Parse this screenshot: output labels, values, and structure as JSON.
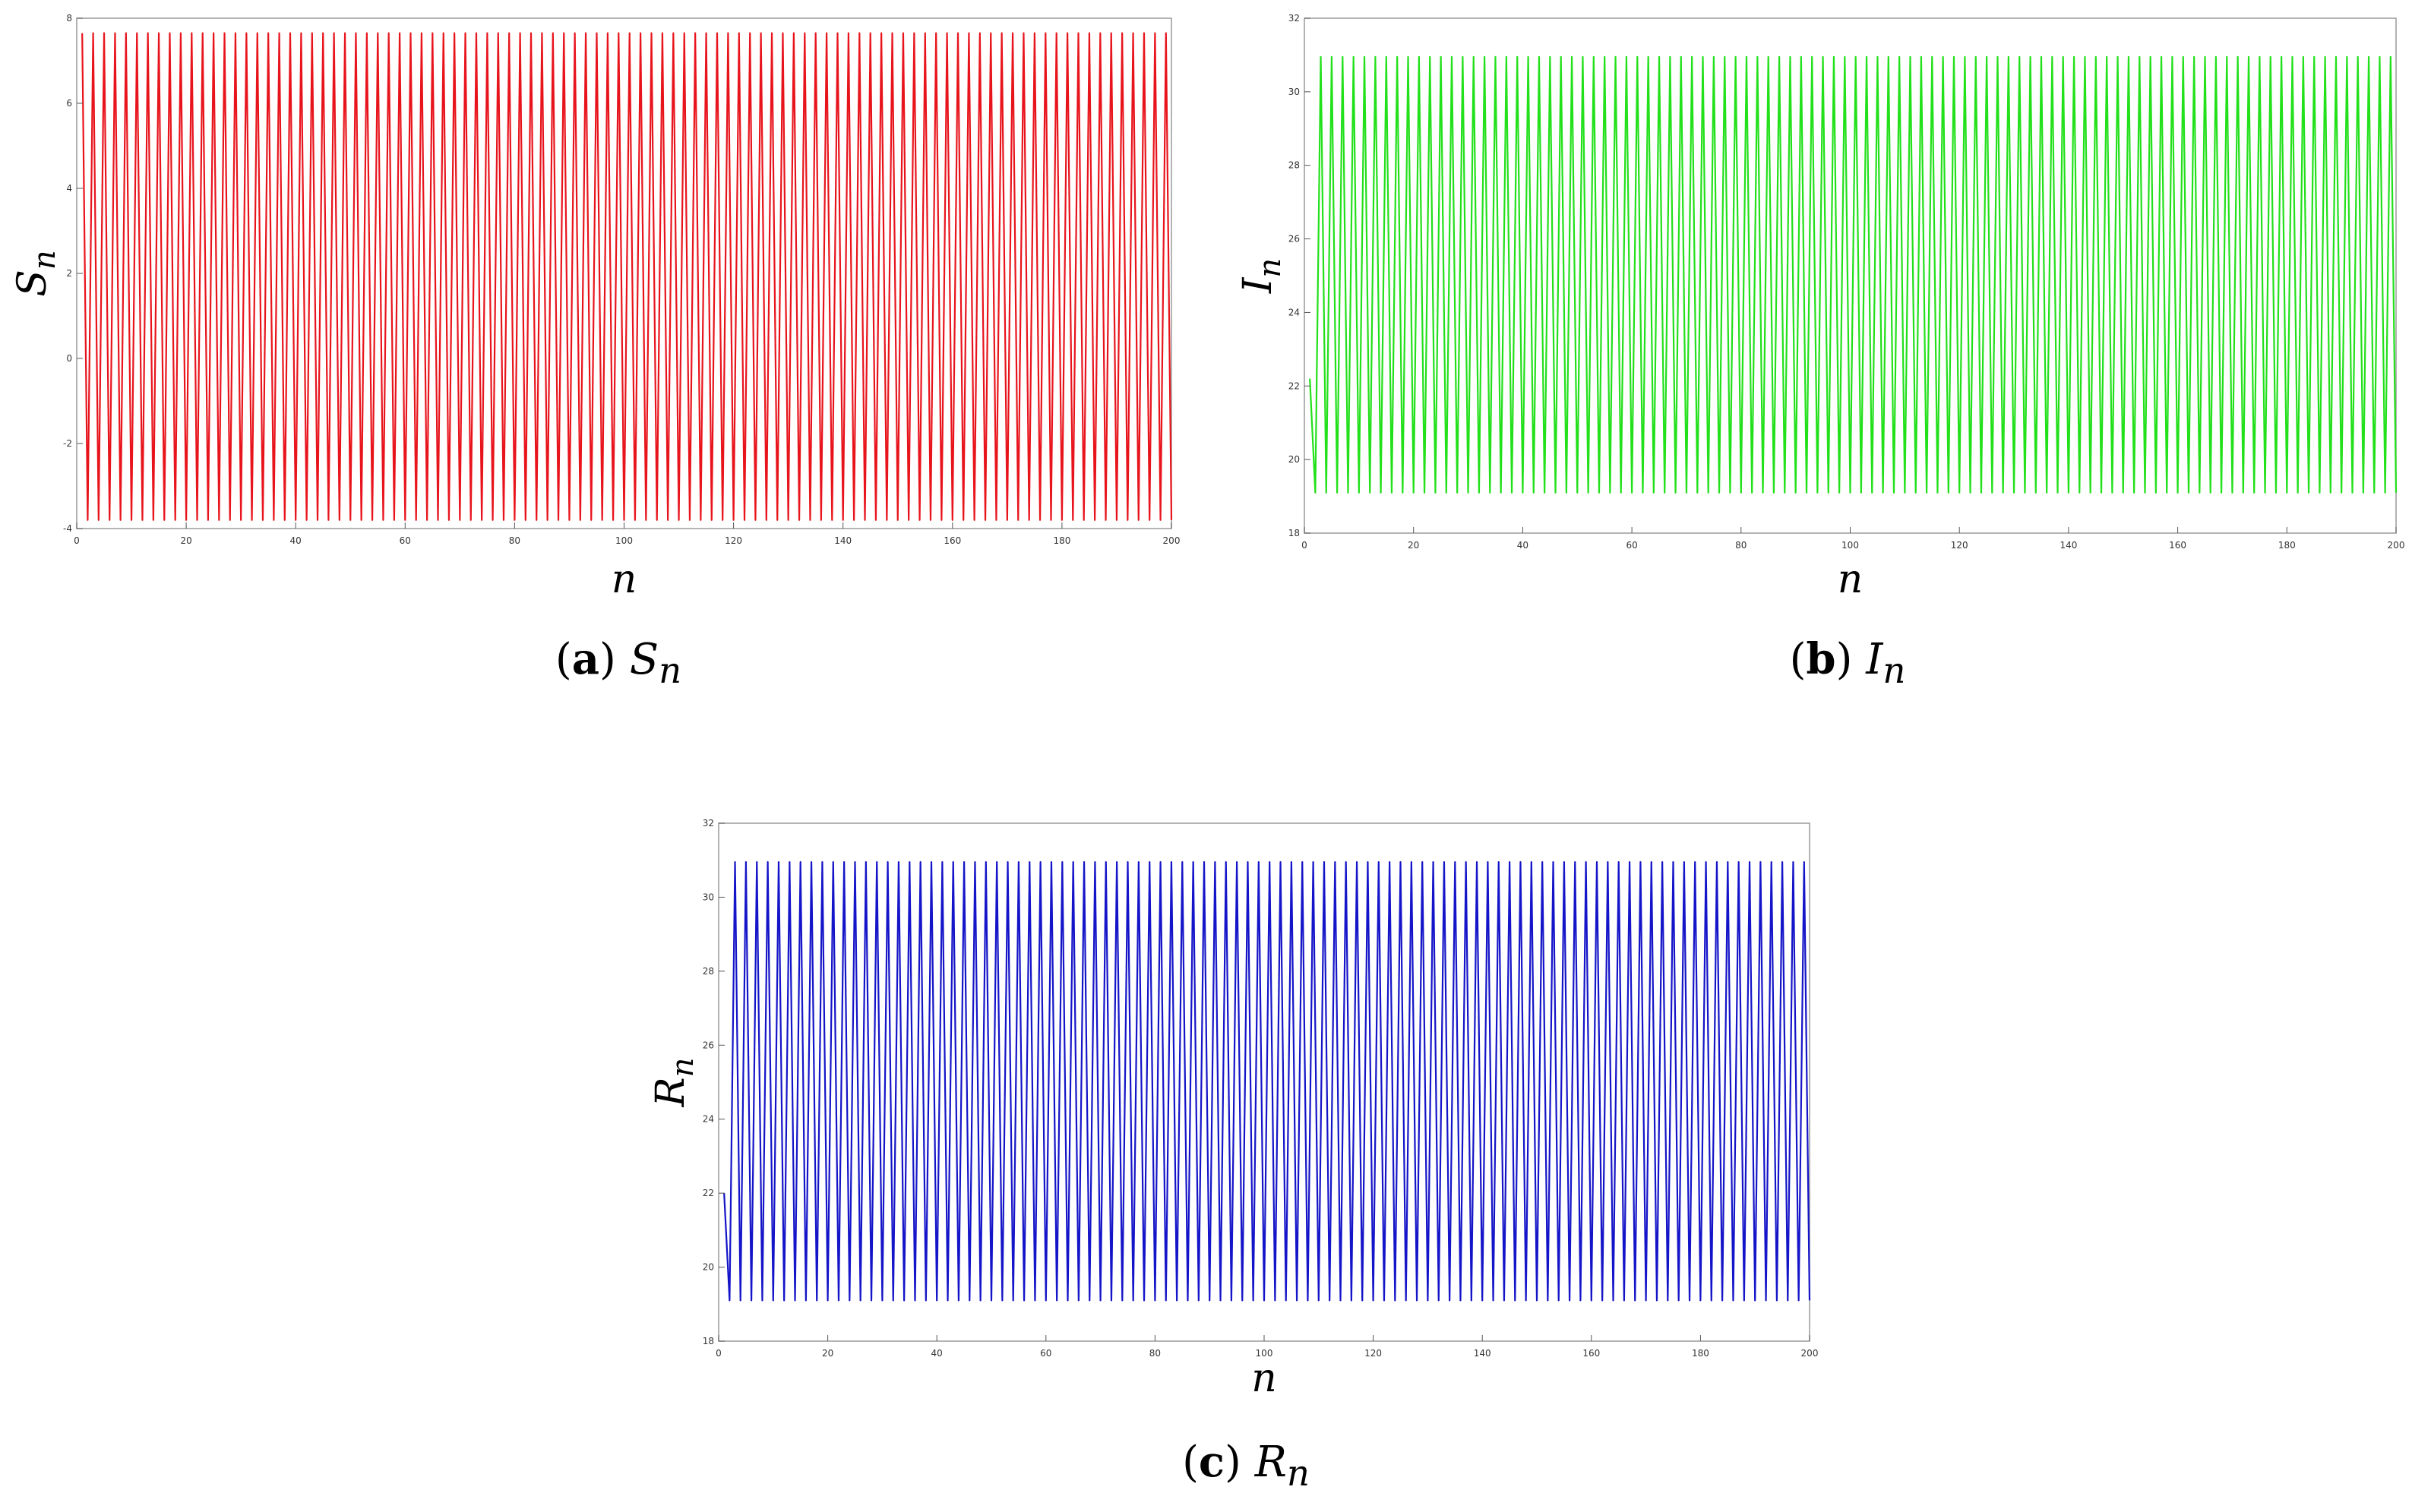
{
  "chart_data": [
    {
      "type": "line",
      "ylabel": "S",
      "ylabel_sub": "n",
      "xlabel": "n",
      "xlim": [
        0,
        200
      ],
      "ylim": [
        -4,
        8
      ],
      "xticks": [
        0,
        20,
        40,
        60,
        80,
        100,
        120,
        140,
        160,
        180,
        200
      ],
      "yticks": [
        -4,
        -2,
        0,
        2,
        4,
        6,
        8
      ],
      "series": [
        {
          "color": "#e8141c",
          "pattern": "alternating",
          "n_start": 1,
          "n_end": 200,
          "low": -3.8,
          "high": 7.65,
          "first": 7.65
        }
      ],
      "grid": false,
      "caption": {
        "letter": "a",
        "symbol": "S",
        "sub": "n"
      }
    },
    {
      "type": "line",
      "ylabel": "I",
      "ylabel_sub": "n",
      "xlabel": "n",
      "xlim": [
        0,
        200
      ],
      "ylim": [
        18,
        32
      ],
      "xticks": [
        0,
        20,
        40,
        60,
        80,
        100,
        120,
        140,
        160,
        180,
        200
      ],
      "yticks": [
        18,
        20,
        22,
        24,
        26,
        28,
        30,
        32
      ],
      "series": [
        {
          "color": "#22e01a",
          "pattern": "alternating",
          "n_start": 1,
          "n_end": 200,
          "low": 19.1,
          "high": 30.95,
          "first": 22.2
        }
      ],
      "grid": false,
      "caption": {
        "letter": "b",
        "symbol": "I",
        "sub": "n"
      }
    },
    {
      "type": "line",
      "ylabel": "R",
      "ylabel_sub": "n",
      "xlabel": "n",
      "xlim": [
        0,
        200
      ],
      "ylim": [
        18,
        32
      ],
      "xticks": [
        0,
        20,
        40,
        60,
        80,
        100,
        120,
        140,
        160,
        180,
        200
      ],
      "yticks": [
        18,
        20,
        22,
        24,
        26,
        28,
        30,
        32
      ],
      "series": [
        {
          "color": "#1414c8",
          "pattern": "alternating",
          "n_start": 1,
          "n_end": 200,
          "low": 19.1,
          "high": 30.95,
          "first": 22.0
        }
      ],
      "grid": false,
      "caption": {
        "letter": "c",
        "symbol": "R",
        "sub": "n"
      }
    }
  ]
}
